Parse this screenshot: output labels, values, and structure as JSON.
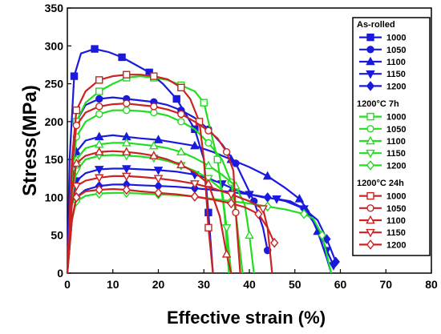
{
  "chart_data": {
    "type": "line",
    "xlabel": "Effective strain (%)",
    "ylabel": "Stress(MPa)",
    "xlim": [
      0,
      80
    ],
    "ylim": [
      0,
      350
    ],
    "xticks": [
      "0",
      "10",
      "20",
      "30",
      "40",
      "50",
      "60",
      "70",
      "80"
    ],
    "yticks": [
      "0",
      "50",
      "100",
      "150",
      "200",
      "250",
      "300",
      "350"
    ],
    "grid": false,
    "legend_position": "right",
    "legend_groups": [
      {
        "title": "As-rolled",
        "color": "#1a1adc",
        "filled": true,
        "entries": [
          {
            "name": "1000",
            "marker": "square"
          },
          {
            "name": "1050",
            "marker": "circle"
          },
          {
            "name": "1100",
            "marker": "triangle-up"
          },
          {
            "name": "1150",
            "marker": "triangle-down"
          },
          {
            "name": "1200",
            "marker": "diamond"
          }
        ]
      },
      {
        "title": "1200°C  7h",
        "color": "#22dd22",
        "filled": false,
        "entries": [
          {
            "name": "1000",
            "marker": "square"
          },
          {
            "name": "1050",
            "marker": "circle"
          },
          {
            "name": "1100",
            "marker": "triangle-up"
          },
          {
            "name": "1150",
            "marker": "triangle-down"
          },
          {
            "name": "1200",
            "marker": "diamond"
          }
        ]
      },
      {
        "title": "1200°C  24h",
        "color": "#cc2222",
        "filled": false,
        "entries": [
          {
            "name": "1000",
            "marker": "square"
          },
          {
            "name": "1050",
            "marker": "circle"
          },
          {
            "name": "1100",
            "marker": "triangle-up"
          },
          {
            "name": "1150",
            "marker": "triangle-down"
          },
          {
            "name": "1200",
            "marker": "diamond"
          }
        ]
      }
    ],
    "series": [
      {
        "group": 0,
        "name": "1000",
        "marker": "square",
        "color": "#1a1adc",
        "filled": true,
        "x": [
          0,
          0.5,
          1.5,
          3,
          6,
          9,
          12,
          15,
          18,
          21,
          24,
          26,
          28,
          30,
          31,
          32
        ],
        "y": [
          0,
          150,
          260,
          290,
          296,
          292,
          285,
          275,
          265,
          250,
          230,
          210,
          190,
          150,
          80,
          0
        ]
      },
      {
        "group": 0,
        "name": "1050",
        "marker": "circle",
        "color": "#1a1adc",
        "filled": true,
        "x": [
          0,
          1,
          2,
          4,
          7,
          10,
          13,
          16,
          19,
          22,
          25,
          28,
          31,
          34,
          37,
          39,
          41,
          43,
          44
        ],
        "y": [
          0,
          140,
          200,
          222,
          230,
          232,
          230,
          228,
          226,
          222,
          215,
          205,
          190,
          170,
          145,
          120,
          95,
          60,
          30
        ]
      },
      {
        "group": 0,
        "name": "1100",
        "marker": "triangle-up",
        "color": "#1a1adc",
        "filled": true,
        "x": [
          0,
          1,
          2,
          4,
          7,
          10,
          13,
          16,
          20,
          24,
          28,
          32,
          36,
          40,
          44,
          48,
          51,
          53,
          55,
          57,
          58
        ],
        "y": [
          0,
          120,
          160,
          175,
          180,
          182,
          180,
          178,
          176,
          172,
          168,
          160,
          150,
          140,
          128,
          112,
          98,
          82,
          55,
          20,
          0
        ]
      },
      {
        "group": 0,
        "name": "1150",
        "marker": "triangle-down",
        "color": "#1a1adc",
        "filled": true,
        "x": [
          0,
          1,
          2,
          4,
          7,
          10,
          13,
          16,
          20,
          24,
          28,
          31,
          34,
          37,
          40,
          43,
          46,
          49,
          52,
          55,
          57,
          58.5
        ],
        "y": [
          0,
          100,
          122,
          132,
          137,
          138,
          138,
          137,
          136,
          134,
          130,
          125,
          118,
          110,
          104,
          100,
          98,
          95,
          85,
          60,
          30,
          10
        ]
      },
      {
        "group": 0,
        "name": "1200",
        "marker": "diamond",
        "color": "#1a1adc",
        "filled": true,
        "x": [
          0,
          1,
          2,
          4,
          7,
          10,
          13,
          16,
          20,
          24,
          28,
          32,
          36,
          40,
          44,
          48,
          52,
          55,
          57,
          59
        ],
        "y": [
          0,
          70,
          100,
          110,
          115,
          117,
          117,
          116,
          115,
          114,
          112,
          110,
          107,
          104,
          100,
          95,
          85,
          70,
          45,
          15
        ]
      },
      {
        "group": 1,
        "name": "1000",
        "marker": "square",
        "color": "#22dd22",
        "filled": false,
        "x": [
          0,
          1,
          2,
          4,
          7,
          10,
          13,
          16,
          19,
          22,
          25,
          28,
          30,
          31,
          33,
          34.5,
          35.5
        ],
        "y": [
          0,
          130,
          200,
          225,
          240,
          250,
          258,
          260,
          258,
          255,
          248,
          240,
          225,
          200,
          150,
          80,
          0
        ]
      },
      {
        "group": 1,
        "name": "1050",
        "marker": "circle",
        "color": "#22dd22",
        "filled": false,
        "x": [
          0,
          1,
          2,
          4,
          7,
          10,
          13,
          16,
          19,
          22,
          25,
          28,
          31,
          34,
          36,
          37,
          38.5
        ],
        "y": [
          0,
          130,
          180,
          200,
          210,
          215,
          215,
          214,
          212,
          208,
          200,
          190,
          172,
          150,
          120,
          80,
          0
        ]
      },
      {
        "group": 1,
        "name": "1100",
        "marker": "triangle-up",
        "color": "#22dd22",
        "filled": false,
        "x": [
          0,
          1,
          2,
          4,
          7,
          10,
          13,
          16,
          19,
          22,
          25,
          28,
          31,
          34,
          37,
          39,
          40,
          41
        ],
        "y": [
          0,
          110,
          150,
          165,
          170,
          172,
          172,
          170,
          168,
          165,
          160,
          152,
          142,
          130,
          115,
          90,
          50,
          0
        ]
      },
      {
        "group": 1,
        "name": "1150",
        "marker": "triangle-down",
        "color": "#22dd22",
        "filled": false,
        "x": [
          0,
          1,
          2,
          4,
          7,
          10,
          13,
          16,
          19,
          22,
          25,
          28,
          31,
          34,
          35,
          36
        ],
        "y": [
          0,
          100,
          135,
          150,
          155,
          156,
          155,
          154,
          152,
          148,
          142,
          135,
          125,
          110,
          60,
          0
        ]
      },
      {
        "group": 1,
        "name": "1200",
        "marker": "diamond",
        "color": "#22dd22",
        "filled": false,
        "x": [
          0,
          1,
          2,
          4,
          7,
          10,
          13,
          16,
          20,
          24,
          28,
          32,
          36,
          40,
          44,
          48,
          52,
          54,
          56,
          58
        ],
        "y": [
          0,
          70,
          95,
          102,
          105,
          106,
          106,
          105,
          104,
          103,
          101,
          98,
          95,
          92,
          88,
          84,
          78,
          72,
          50,
          0
        ]
      },
      {
        "group": 2,
        "name": "1000",
        "marker": "square",
        "color": "#cc2222",
        "filled": false,
        "x": [
          0,
          1,
          2,
          4,
          7,
          10,
          13,
          16,
          19,
          22,
          25,
          27,
          29,
          30,
          31,
          32
        ],
        "y": [
          0,
          150,
          215,
          240,
          255,
          260,
          262,
          262,
          260,
          256,
          245,
          230,
          200,
          150,
          60,
          0
        ]
      },
      {
        "group": 2,
        "name": "1050",
        "marker": "circle",
        "color": "#cc2222",
        "filled": false,
        "x": [
          0,
          1,
          2,
          4,
          7,
          10,
          13,
          16,
          19,
          22,
          25,
          28,
          31,
          33,
          35,
          36.5,
          37,
          38
        ],
        "y": [
          0,
          140,
          195,
          212,
          220,
          223,
          224,
          222,
          220,
          216,
          210,
          200,
          188,
          178,
          160,
          135,
          80,
          0
        ]
      },
      {
        "group": 2,
        "name": "1100",
        "marker": "triangle-up",
        "color": "#cc2222",
        "filled": false,
        "x": [
          0,
          1,
          2,
          4,
          7,
          10,
          13,
          16,
          19,
          22,
          25,
          28,
          31,
          33.5,
          35,
          36
        ],
        "y": [
          0,
          110,
          145,
          155,
          160,
          161,
          160,
          158,
          155,
          150,
          143,
          133,
          118,
          75,
          25,
          0
        ]
      },
      {
        "group": 2,
        "name": "1150",
        "marker": "triangle-down",
        "color": "#cc2222",
        "filled": false,
        "x": [
          0,
          1,
          2,
          4,
          7,
          10,
          13,
          16,
          20,
          24,
          28,
          32,
          36,
          40,
          43,
          44,
          45
        ],
        "y": [
          0,
          90,
          115,
          122,
          126,
          128,
          128,
          127,
          125,
          122,
          118,
          112,
          104,
          95,
          85,
          60,
          0
        ]
      },
      {
        "group": 2,
        "name": "1200",
        "marker": "diamond",
        "color": "#cc2222",
        "filled": false,
        "x": [
          0,
          1,
          2,
          4,
          7,
          10,
          13,
          16,
          20,
          24,
          28,
          32,
          36,
          39,
          42,
          44,
          45.5
        ],
        "y": [
          0,
          70,
          100,
          108,
          110,
          111,
          110,
          108,
          106,
          104,
          101,
          97,
          92,
          87,
          78,
          60,
          40
        ]
      }
    ]
  }
}
